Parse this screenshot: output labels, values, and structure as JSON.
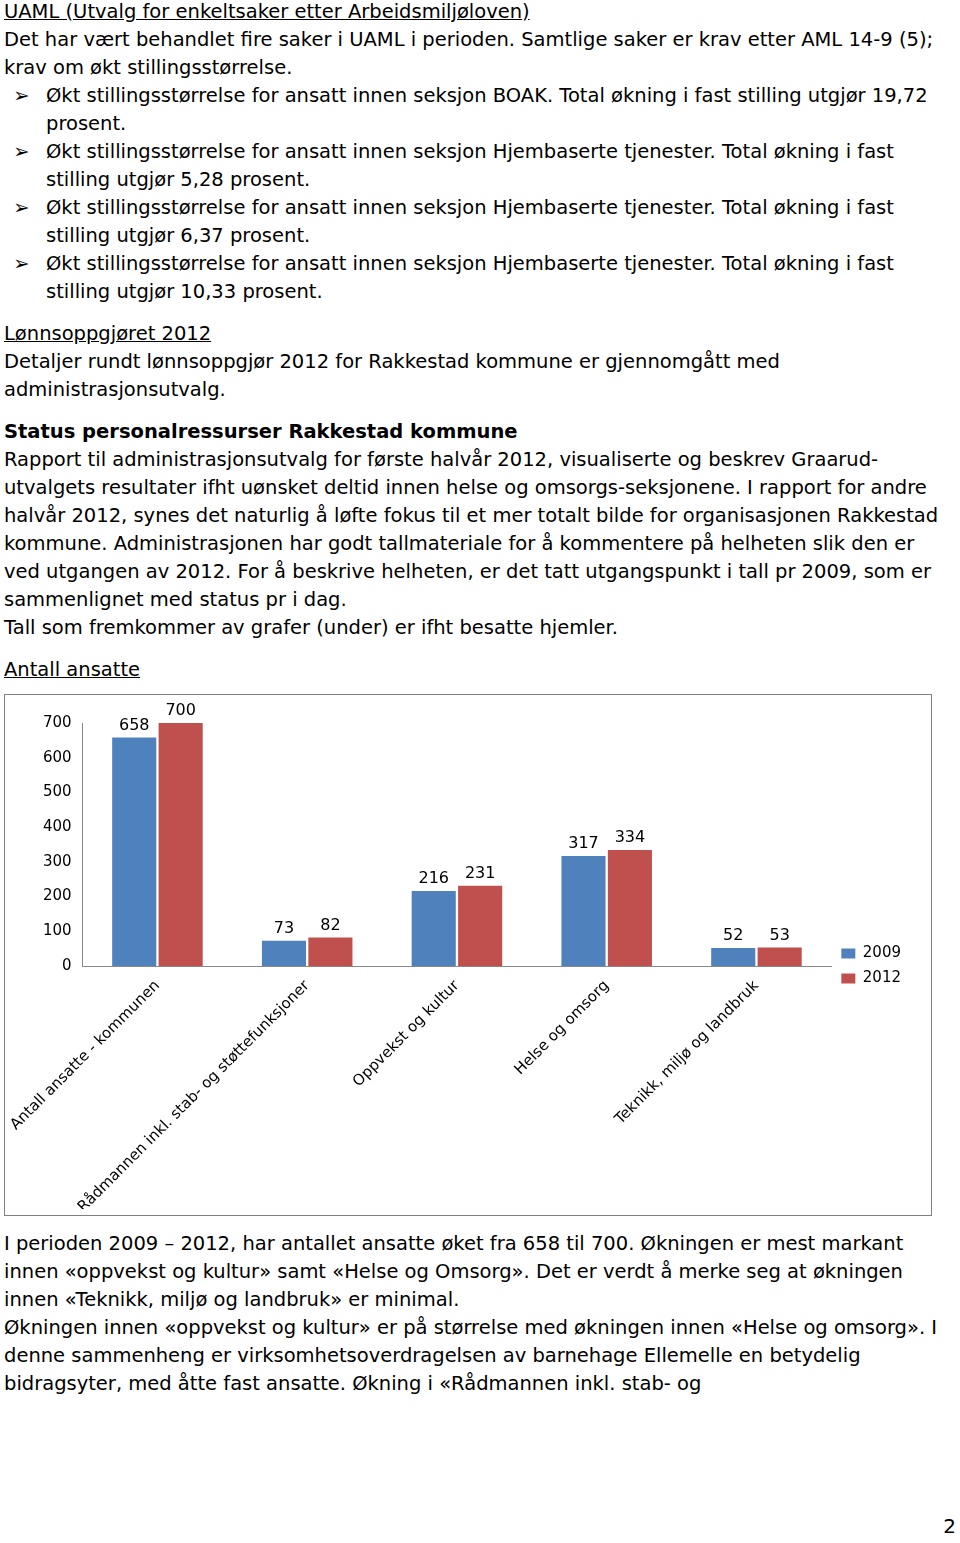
{
  "uaml": {
    "heading": "UAML (Utvalg for enkeltsaker etter Arbeidsmiljøloven)",
    "text": "Det har vært behandlet fire saker i UAML i perioden. Samtlige saker er krav etter AML 14-9 (5); krav om økt stillingsstørrelse.",
    "bullets": [
      "Økt stillingsstørrelse for ansatt innen seksjon BOAK. Total økning i fast stilling utgjør 19,72 prosent.",
      "Økt stillingsstørrelse for ansatt innen seksjon Hjembaserte tjenester. Total økning i fast stilling utgjør 5,28 prosent.",
      "Økt stillingsstørrelse for ansatt innen seksjon Hjembaserte tjenester. Total økning i fast stilling utgjør 6,37 prosent.",
      "Økt stillingsstørrelse for ansatt innen seksjon Hjembaserte tjenester. Total økning i fast stilling utgjør 10,33 prosent."
    ]
  },
  "lonn": {
    "heading": "Lønnsoppgjøret 2012",
    "text": "Detaljer rundt lønnsoppgjør 2012 for Rakkestad kommune er gjennomgått med administrasjonsutvalg."
  },
  "status": {
    "heading": "Status personalressurser Rakkestad kommune",
    "paragraphs": [
      "Rapport til administrasjonsutvalg for første halvår 2012, visualiserte og beskrev Graarud-utvalgets resultater ifht uønsket deltid innen helse og omsorgs-seksjonene. I rapport for andre halvår 2012, synes det naturlig å løfte fokus til et mer totalt bilde for organisasjonen Rakkestad kommune. Administrasjonen har godt tallmateriale for å kommentere på helheten slik den er ved utgangen av 2012. For å beskrive helheten, er det tatt utgangspunkt i tall pr 2009, som er sammenlignet med status pr i dag.",
      "Tall som fremkommer av grafer (under) er ifht besatte hjemler."
    ]
  },
  "chart_heading": "Antall ansatte",
  "chart_data": {
    "type": "bar",
    "categories": [
      "Antall ansatte - kommunen",
      "Rådmannen inkl. stab- og støttefunksjoner",
      "Oppvekst og kultur",
      "Helse og omsorg",
      "Teknikk, miljø og landbruk"
    ],
    "series": [
      {
        "name": "2009",
        "color": "#4f81bd",
        "values": [
          658,
          73,
          216,
          317,
          52
        ]
      },
      {
        "name": "2012",
        "color": "#c0504d",
        "values": [
          700,
          82,
          231,
          334,
          53
        ]
      }
    ],
    "ylim": [
      0,
      700
    ],
    "yticks": [
      0,
      100,
      200,
      300,
      400,
      500,
      600,
      700
    ],
    "grid": false,
    "legend": "right",
    "data_labels": true
  },
  "after_chart": [
    "I perioden 2009 – 2012, har antallet ansatte øket fra 658 til 700. Økningen er mest markant innen «oppvekst og kultur» samt «Helse og Omsorg». Det er verdt å merke seg at økningen innen «Teknikk, miljø og landbruk» er minimal.",
    "Økningen innen «oppvekst og kultur» er på størrelse med økningen innen «Helse og omsorg». I denne sammenheng er virksomhetsoverdragelsen av barnehage Ellemelle en betydelig bidragsyter, med åtte fast ansatte. Økning i «Rådmannen inkl. stab- og"
  ],
  "page_number": "2"
}
